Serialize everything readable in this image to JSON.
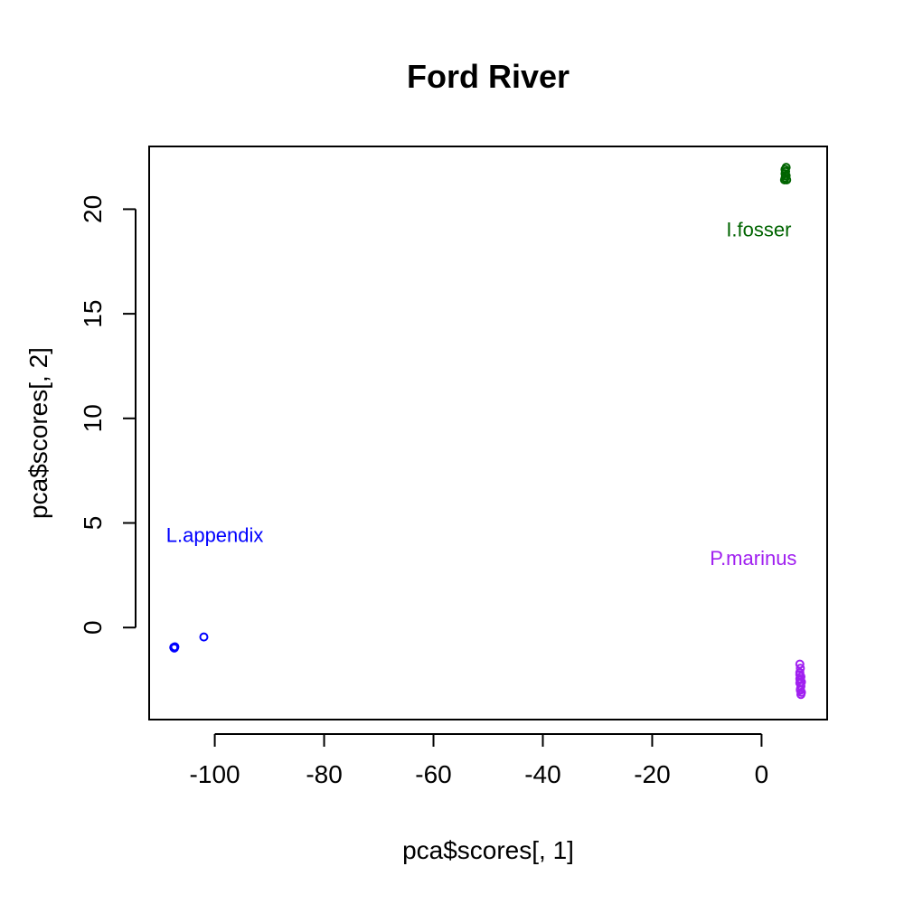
{
  "chart_data": {
    "type": "scatter",
    "title": "Ford River",
    "xlabel": "pca$scores[, 1]",
    "ylabel": "pca$scores[, 2]",
    "xlim": [
      -112,
      12
    ],
    "ylim": [
      -4.4,
      23
    ],
    "xticks": [
      -100,
      -80,
      -60,
      -40,
      -20,
      0
    ],
    "yticks": [
      0,
      5,
      10,
      15,
      20
    ],
    "grid": false,
    "marker": "open-circle",
    "series": [
      {
        "name": "L.appendix",
        "color": "#0000ff",
        "label_pos": [
          -100,
          4.1
        ],
        "points": [
          [
            -107.5,
            -0.95
          ],
          [
            -107.3,
            -0.92
          ],
          [
            -107.4,
            -0.98
          ],
          [
            -102,
            -0.45
          ]
        ]
      },
      {
        "name": "I.fosser",
        "color": "#006400",
        "label_pos": [
          -0.5,
          18.7
        ],
        "points": [
          [
            4.2,
            21.4
          ],
          [
            4.3,
            21.5
          ],
          [
            4.4,
            21.6
          ],
          [
            4.3,
            21.7
          ],
          [
            4.4,
            21.8
          ],
          [
            4.3,
            21.9
          ],
          [
            4.5,
            22.0
          ],
          [
            4.6,
            21.4
          ],
          [
            4.5,
            21.6
          ]
        ]
      },
      {
        "name": "P.marinus",
        "color": "#a020f0",
        "label_pos": [
          -1.5,
          3.0
        ],
        "points": [
          [
            7.0,
            -1.75
          ],
          [
            7.1,
            -1.95
          ],
          [
            7.0,
            -2.15
          ],
          [
            7.2,
            -2.35
          ],
          [
            7.1,
            -2.5
          ],
          [
            7.0,
            -2.65
          ],
          [
            7.2,
            -2.8
          ],
          [
            7.1,
            -2.95
          ],
          [
            7.3,
            -3.1
          ],
          [
            7.2,
            -3.2
          ],
          [
            7.0,
            -2.25
          ],
          [
            7.3,
            -2.6
          ],
          [
            7.1,
            -3.0
          ],
          [
            7.0,
            -2.45
          ]
        ]
      }
    ]
  }
}
